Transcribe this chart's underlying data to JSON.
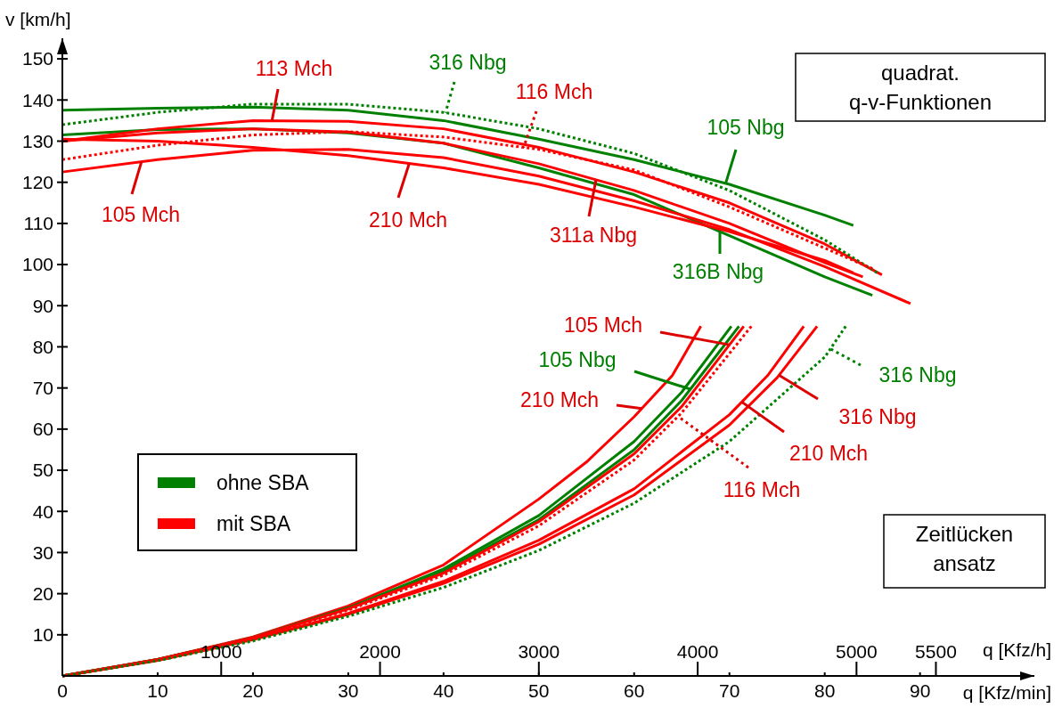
{
  "chart_data": {
    "type": "line",
    "xlabel": "q [Kfz/min]",
    "ylabel": "v [km/h]",
    "x2label": "q [Kfz/h]",
    "xlim": [
      0,
      102
    ],
    "xticks": [
      0,
      10,
      20,
      30,
      40,
      50,
      60,
      70,
      80,
      90
    ],
    "x2lim": [
      0,
      6120
    ],
    "x2ticks": [
      1000,
      2000,
      3000,
      4000,
      5000,
      5500
    ],
    "ylim": [
      0,
      155
    ],
    "yticks": [
      10,
      20,
      30,
      40,
      50,
      60,
      70,
      80,
      90,
      100,
      110,
      120,
      130,
      140,
      150
    ],
    "grid": false,
    "legend": "left",
    "marker": "none",
    "series": [
      {
        "name": "ohne SBA",
        "color": "#008000",
        "line_style": "solid",
        "x": [
          0,
          10,
          20,
          30,
          40,
          50,
          60,
          70,
          80,
          83
        ],
        "values": [
          137.5,
          138,
          138.3,
          137.5,
          135,
          130.5,
          125.5,
          119.5,
          112,
          109.5
        ]
      },
      {
        "color": "#008000",
        "line_style": "dotted",
        "x": [
          0,
          10,
          20,
          30,
          40,
          50,
          60,
          70,
          80,
          85.5
        ],
        "values": [
          134,
          137,
          139,
          139,
          137,
          133,
          127,
          118,
          106,
          98
        ]
      },
      {
        "color": "#008000",
        "line_style": "solid",
        "x": [
          0,
          10,
          20,
          30,
          40,
          50,
          60,
          70,
          80,
          85
        ],
        "values": [
          131.5,
          132.8,
          133,
          132,
          129.5,
          123.5,
          117,
          107,
          97,
          92.5
        ]
      },
      {
        "name": "mit SBA",
        "color": "#ff0000",
        "line_style": "solid",
        "x": [
          0,
          10,
          20,
          30,
          40,
          50,
          60,
          70,
          80,
          86
        ],
        "values": [
          130,
          133,
          135,
          134.8,
          133,
          128.5,
          122.5,
          115,
          105,
          97.5
        ]
      },
      {
        "color": "#ff0000",
        "line_style": "dotted",
        "x": [
          0,
          10,
          20,
          30,
          40,
          50,
          60,
          70,
          80,
          85
        ],
        "values": [
          125.5,
          129,
          131.5,
          132.3,
          131,
          128,
          123,
          114,
          104,
          99
        ]
      },
      {
        "color": "#ff0000",
        "line_style": "solid",
        "x": [
          0,
          10,
          20,
          30,
          40,
          50,
          60,
          70,
          80,
          83
        ],
        "values": [
          130.5,
          130,
          128.5,
          126.5,
          123.5,
          119.5,
          114,
          108,
          101,
          98
        ]
      },
      {
        "color": "#ff0000",
        "line_style": "solid",
        "x": [
          0,
          10,
          20,
          30,
          40,
          50,
          60,
          70,
          80,
          89
        ],
        "values": [
          122.5,
          125.5,
          127.8,
          128,
          126,
          121.5,
          115.5,
          108.5,
          99.5,
          90.5
        ]
      },
      {
        "color": "#ff0000",
        "line_style": "solid",
        "x": [
          0,
          10,
          20,
          30,
          40,
          50,
          60,
          70,
          80,
          84
        ],
        "values": [
          130,
          132,
          133,
          132.2,
          129.5,
          124.5,
          118,
          110,
          100.5,
          97
        ]
      },
      {
        "color": "#ff0000",
        "line_style": "solid",
        "x": [
          0,
          10,
          20,
          30,
          40,
          50,
          55,
          60,
          64,
          67
        ],
        "values": [
          0,
          4,
          9.5,
          17,
          27,
          43,
          52,
          63,
          73,
          85
        ]
      },
      {
        "color": "#008000",
        "line_style": "solid",
        "x": [
          0,
          10,
          20,
          30,
          40,
          50,
          60,
          65,
          70,
          71
        ],
        "values": [
          0,
          4,
          9.3,
          16.5,
          25.5,
          38,
          55,
          67,
          82,
          85
        ]
      },
      {
        "color": "#008000",
        "line_style": "solid",
        "x": [
          0,
          10,
          20,
          30,
          40,
          50,
          60,
          65,
          70.2
        ],
        "values": [
          0,
          4,
          9.3,
          16.5,
          26,
          39,
          57,
          69,
          85
        ]
      },
      {
        "color": "#ff0000",
        "line_style": "solid",
        "x": [
          0,
          10,
          20,
          30,
          40,
          50,
          60,
          65,
          71.5
        ],
        "values": [
          0,
          4,
          9.3,
          16.3,
          25,
          37.5,
          54,
          65.5,
          85
        ]
      },
      {
        "color": "#ff0000",
        "line_style": "dotted",
        "x": [
          0,
          10,
          20,
          30,
          40,
          50,
          60,
          65,
          72.3
        ],
        "values": [
          0,
          3.9,
          9.2,
          16,
          24.5,
          36.5,
          52.5,
          64,
          85
        ]
      },
      {
        "color": "#ff0000",
        "line_style": "solid",
        "x": [
          0,
          10,
          20,
          30,
          40,
          50,
          60,
          70,
          74,
          77.8
        ],
        "values": [
          0,
          3.8,
          8.9,
          15.2,
          23,
          33,
          45.5,
          63.5,
          73,
          85
        ]
      },
      {
        "color": "#ff0000",
        "line_style": "solid",
        "x": [
          0,
          10,
          20,
          30,
          40,
          50,
          60,
          70,
          75,
          79.2
        ],
        "values": [
          0,
          3.8,
          8.8,
          15,
          22.5,
          32,
          44,
          61,
          72.5,
          85
        ]
      },
      {
        "color": "#008000",
        "line_style": "dotted",
        "x": [
          0,
          10,
          20,
          30,
          40,
          50,
          60,
          70,
          80,
          82.2
        ],
        "values": [
          0,
          3.7,
          8.5,
          14.5,
          21.5,
          30.5,
          42,
          57,
          77.5,
          85
        ]
      }
    ],
    "annotations": [
      {
        "text": "113 Mch",
        "x": 22,
        "y": 135
      },
      {
        "text": "316 Nbg",
        "x": 40.2,
        "y": 136.9
      },
      {
        "text": "116 Mch",
        "x": 48.4,
        "y": 128.5
      },
      {
        "text": "105 Nbg",
        "x": 69.6,
        "y": 119.7
      },
      {
        "text": "105 Mch",
        "x": 8.3,
        "y": 125
      },
      {
        "text": "210 Mch",
        "x": 36.4,
        "y": 124.6
      },
      {
        "text": "311a Nbg",
        "x": 56,
        "y": 120.6
      },
      {
        "text": "316B Nbg",
        "x": 69,
        "y": 108
      },
      {
        "text": "105 Mch",
        "x": 70,
        "y": 80.5
      },
      {
        "text": "105 Nbg",
        "x": 65.9,
        "y": 69.7
      },
      {
        "text": "210 Mch",
        "x": 60.8,
        "y": 65
      },
      {
        "text": "316 Nbg",
        "x": 80.6,
        "y": 79.5
      },
      {
        "text": "316 Nbg",
        "x": 75.2,
        "y": 73.1
      },
      {
        "text": "210 Mch",
        "x": 71.3,
        "y": 66.6
      },
      {
        "text": "116 Mch",
        "x": 64.6,
        "y": 63.1
      },
      "quadrat.\nq-v-Funktionen",
      "Zeitlücken\nansatz"
    ]
  }
}
